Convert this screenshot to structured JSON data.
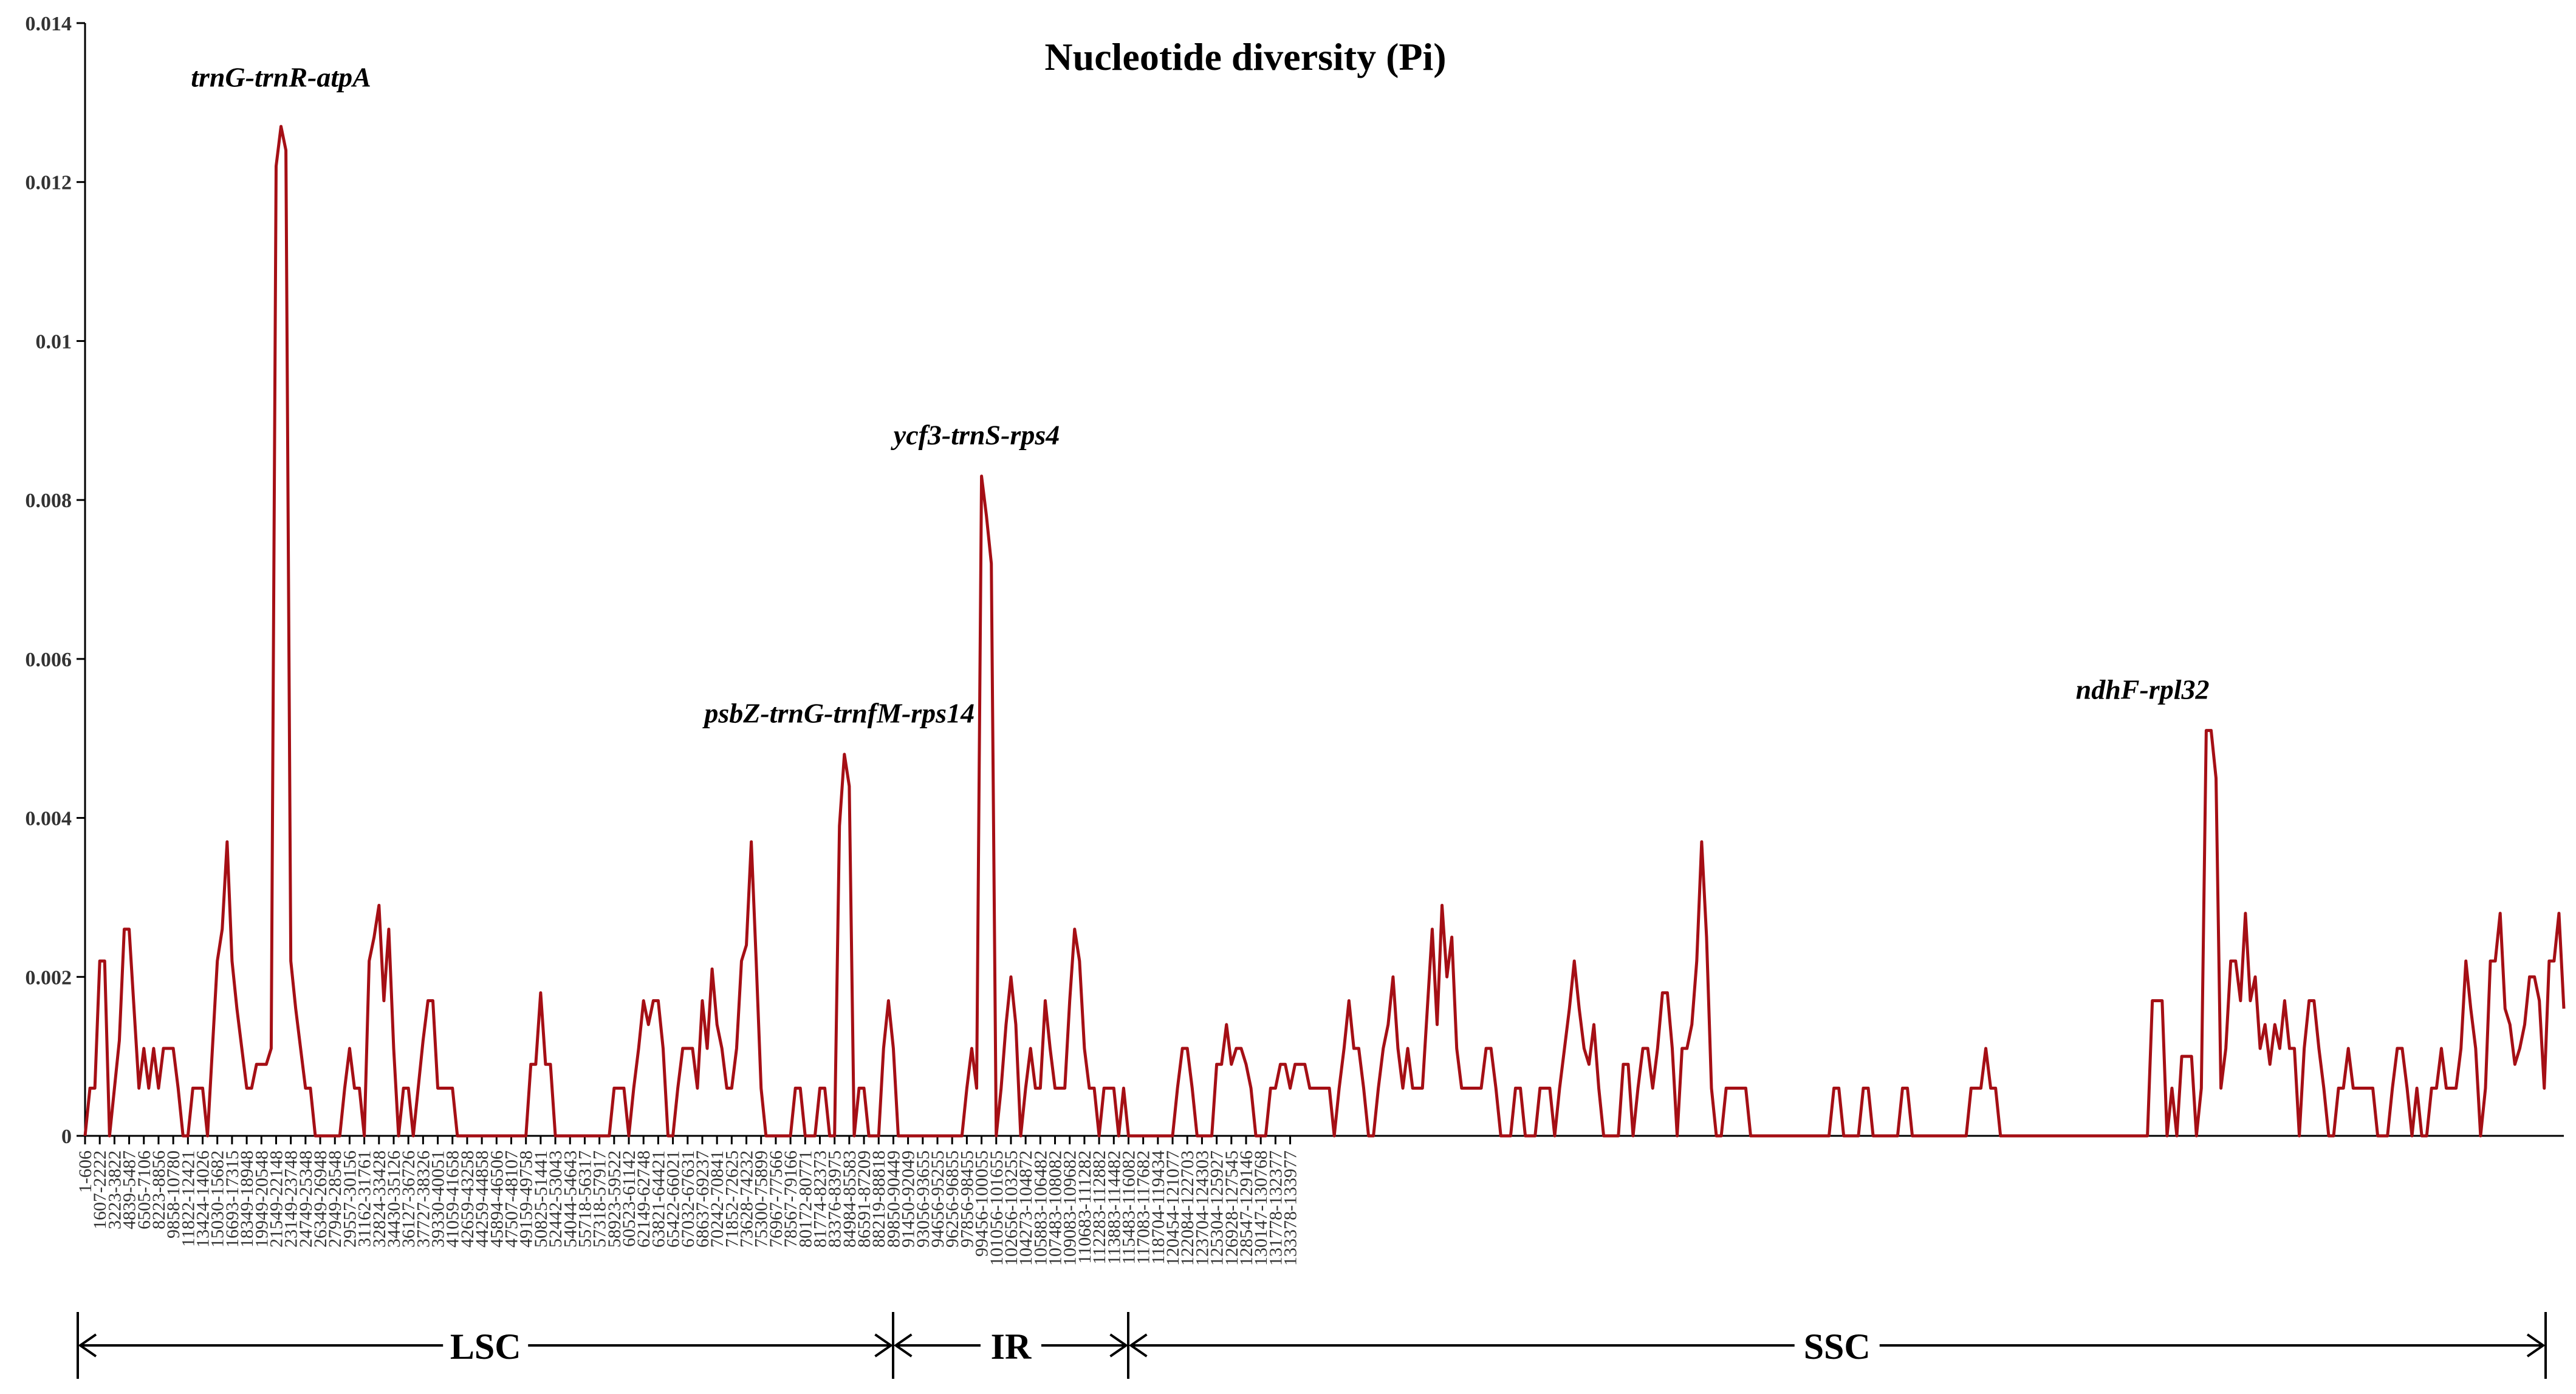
{
  "chart_data": {
    "type": "line",
    "title": "Nucleotide diversity (Pi)",
    "xlabel": "",
    "ylabel": "",
    "ylim": [
      0,
      0.014
    ],
    "yticks": [
      "0",
      "0.002",
      "0.004",
      "0.006",
      "0.008",
      "0.01",
      "0.012",
      "0.014"
    ],
    "line_color": "#a50f15",
    "tick_labels": [
      "1-606",
      "1607-2222",
      "3223-3822",
      "4839-5487",
      "6505-7106",
      "8223-8856",
      "9858-10780",
      "11822-12421",
      "13424-14026",
      "15030-15682",
      "16693-17315",
      "18349-18948",
      "19949-20548",
      "21549-22148",
      "23149-23748",
      "24749-25348",
      "26349-26948",
      "27949-28548",
      "29557-30156",
      "31162-31761",
      "32824-33428",
      "34430-35126",
      "36127-36726",
      "37727-38326",
      "39330-40051",
      "41059-41658",
      "42659-43258",
      "44259-44858",
      "45894-46506",
      "47507-48107",
      "49159-49758",
      "50825-51441",
      "52442-53043",
      "54044-54643",
      "55718-56317",
      "57318-57917",
      "58923-59522",
      "60523-61142",
      "62149-62748",
      "63821-64421",
      "65422-66021",
      "67032-67631",
      "68637-69237",
      "70242-70841",
      "71852-72625",
      "73628-74232",
      "75300-75899",
      "76967-77566",
      "78567-79166",
      "80172-80771",
      "81774-82373",
      "83376-83975",
      "84984-85583",
      "86591-87209",
      "88219-88818",
      "89850-90449",
      "91450-92049",
      "93056-93655",
      "94656-95255",
      "96256-96855",
      "97856-98455",
      "99456-100055",
      "101056-101655",
      "102656-103255",
      "104273-104872",
      "105883-106482",
      "107483-108082",
      "109083-109682",
      "110683-111282",
      "112283-112882",
      "113883-114482",
      "115483-116082",
      "117083-117682",
      "118704-119434",
      "120454-121077",
      "122084-122703",
      "123704-124303",
      "125304-125927",
      "126928-127545",
      "128547-129146",
      "130147-130768",
      "131778-132377",
      "133378-133977"
    ],
    "points_per_tick": 3,
    "values": [
      0,
      0.0006,
      0.0006,
      0.0022,
      0.0022,
      0,
      0.0006,
      0.0012,
      0.0026,
      0.0026,
      0.0016,
      0.0006,
      0.0011,
      0.0006,
      0.0011,
      0.0006,
      0.0011,
      0.0011,
      0.0011,
      0.0006,
      0,
      0,
      0.0006,
      0.0006,
      0.0006,
      0,
      0.0011,
      0.0022,
      0.0026,
      0.0037,
      0.0022,
      0.0016,
      0.0011,
      0.0006,
      0.0006,
      0.0009,
      0.0009,
      0.0009,
      0.0011,
      0.0122,
      0.0127,
      0.0124,
      0.0022,
      0.0016,
      0.0011,
      0.0006,
      0.0006,
      0,
      0,
      0,
      0,
      0,
      0,
      0.0006,
      0.0011,
      0.0006,
      0.0006,
      0,
      0.0022,
      0.0025,
      0.0029,
      0.0017,
      0.0026,
      0.0011,
      0,
      0.0006,
      0.0006,
      0,
      0.0006,
      0.0012,
      0.0017,
      0.0017,
      0.0006,
      0.0006,
      0.0006,
      0.0006,
      0,
      0,
      0,
      0,
      0,
      0,
      0,
      0,
      0,
      0,
      0,
      0,
      0,
      0,
      0,
      0.0009,
      0.0009,
      0.0018,
      0.0009,
      0.0009,
      0,
      0,
      0,
      0,
      0,
      0,
      0,
      0,
      0,
      0,
      0,
      0,
      0.0006,
      0.0006,
      0.0006,
      0,
      0.0006,
      0.0011,
      0.0017,
      0.0014,
      0.0017,
      0.0017,
      0.0011,
      0,
      0,
      0.0006,
      0.0011,
      0.0011,
      0.0011,
      0.0006,
      0.0017,
      0.0011,
      0.0021,
      0.0014,
      0.0011,
      0.0006,
      0.0006,
      0.0011,
      0.0022,
      0.0024,
      0.0037,
      0.0022,
      0.0006,
      0,
      0,
      0,
      0,
      0,
      0,
      0.0006,
      0.0006,
      0,
      0,
      0,
      0.0006,
      0.0006,
      0,
      0,
      0.0039,
      0.0048,
      0.0044,
      0,
      0.0006,
      0.0006,
      0,
      0,
      0,
      0.0011,
      0.0017,
      0.0011,
      0,
      0,
      0,
      0,
      0,
      0,
      0,
      0,
      0,
      0,
      0,
      0,
      0,
      0,
      0.0006,
      0.0011,
      0.0006,
      0.0083,
      0.0078,
      0.0072,
      0,
      0.0006,
      0.0014,
      0.002,
      0.0014,
      0,
      0.0006,
      0.0011,
      0.0006,
      0.0006,
      0.0017,
      0.0011,
      0.0006,
      0.0006,
      0.0006,
      0.0017,
      0.0026,
      0.0022,
      0.0011,
      0.0006,
      0.0006,
      0,
      0.0006,
      0.0006,
      0.0006,
      0,
      0.0006,
      0,
      0,
      0,
      0,
      0,
      0,
      0,
      0,
      0,
      0,
      0.0006,
      0.0011,
      0.0011,
      0.0006,
      0,
      0,
      0,
      0,
      0.0009,
      0.0009,
      0.0014,
      0.0009,
      0.0011,
      0.0011,
      0.0009,
      0.0006,
      0,
      0,
      0,
      0.0006,
      0.0006,
      0.0009,
      0.0009,
      0.0006,
      0.0009,
      0.0009,
      0.0009,
      0.0006,
      0.0006,
      0.0006,
      0.0006,
      0.0006,
      0,
      0.0006,
      0.0011,
      0.0017,
      0.0011,
      0.0011,
      0.0006,
      0,
      0,
      0.0006,
      0.0011,
      0.0014,
      0.002,
      0.0011,
      0.0006,
      0.0011,
      0.0006,
      0.0006,
      0.0006,
      0.0016,
      0.0026,
      0.0014,
      0.0029,
      0.002,
      0.0025,
      0.0011,
      0.0006,
      0.0006,
      0.0006,
      0.0006,
      0.0006,
      0.0011,
      0.0011,
      0.0006,
      0,
      0,
      0,
      0.0006,
      0.0006,
      0,
      0,
      0,
      0.0006,
      0.0006,
      0.0006,
      0,
      0.0006,
      0.0011,
      0.0016,
      0.0022,
      0.0016,
      0.0011,
      0.0009,
      0.0014,
      0.0006,
      0,
      0,
      0,
      0,
      0.0009,
      0.0009,
      0,
      0.0006,
      0.0011,
      0.0011,
      0.0006,
      0.0011,
      0.0018,
      0.0018,
      0.0011,
      0,
      0.0011,
      0.0011,
      0.0014,
      0.0022,
      0.0037,
      0.0025,
      0.0006,
      0,
      0,
      0.0006,
      0.0006,
      0.0006,
      0.0006,
      0.0006,
      0,
      0,
      0,
      0,
      0,
      0,
      0,
      0,
      0,
      0,
      0,
      0,
      0,
      0,
      0,
      0,
      0,
      0.0006,
      0.0006,
      0,
      0,
      0,
      0,
      0.0006,
      0.0006,
      0,
      0,
      0,
      0,
      0,
      0,
      0.0006,
      0.0006,
      0,
      0,
      0,
      0,
      0,
      0,
      0,
      0,
      0,
      0,
      0,
      0,
      0.0006,
      0.0006,
      0.0006,
      0.0011,
      0.0006,
      0.0006,
      0,
      0,
      0,
      0,
      0,
      0,
      0,
      0,
      0,
      0,
      0,
      0,
      0,
      0,
      0,
      0,
      0,
      0,
      0,
      0,
      0,
      0,
      0,
      0,
      0,
      0,
      0,
      0,
      0,
      0,
      0,
      0.0017,
      0.0017,
      0.0017,
      0,
      0.0006,
      0,
      0.001,
      0.001,
      0.001,
      0,
      0.0006,
      0.0051,
      0.0051,
      0.0045,
      0.0006,
      0.0011,
      0.0022,
      0.0022,
      0.0017,
      0.0028,
      0.0017,
      0.002,
      0.0011,
      0.0014,
      0.0009,
      0.0014,
      0.0011,
      0.0017,
      0.0011,
      0.0011,
      0,
      0.0011,
      0.0017,
      0.0017,
      0.0011,
      0.0006,
      0,
      0,
      0.0006,
      0.0006,
      0.0011,
      0.0006,
      0.0006,
      0.0006,
      0.0006,
      0.0006,
      0,
      0,
      0,
      0.0006,
      0.0011,
      0.0011,
      0.0006,
      0,
      0.0006,
      0,
      0,
      0.0006,
      0.0006,
      0.0011,
      0.0006,
      0.0006,
      0.0006,
      0.0011,
      0.0022,
      0.0016,
      0.0011,
      0,
      0.0006,
      0.0022,
      0.0022,
      0.0028,
      0.0016,
      0.0014,
      0.0009,
      0.0011,
      0.0014,
      0.002,
      0.002,
      0.0017,
      0.0006,
      0.0022,
      0.0022,
      0.0028,
      0.0016
    ],
    "annotations": [
      {
        "text": "trnG-trnR-atpA",
        "x_index": 40,
        "y": 0.0132
      },
      {
        "text": "psbZ-trnG-trnfM-rps14",
        "x_index": 154,
        "y": 0.0052
      },
      {
        "text": "ycf3-trnS-rps4",
        "x_index": 182,
        "y": 0.0087
      },
      {
        "text": "ndhF-rpl32",
        "x_index": 420,
        "y": 0.0055
      }
    ],
    "regions": [
      {
        "label": "LSC",
        "from_tick": 0,
        "to_tick": 55
      },
      {
        "label": "IR",
        "from_tick": 55,
        "to_tick": 71
      },
      {
        "label": "SSC",
        "from_tick": 71,
        "to_tick": 82.4
      }
    ]
  }
}
